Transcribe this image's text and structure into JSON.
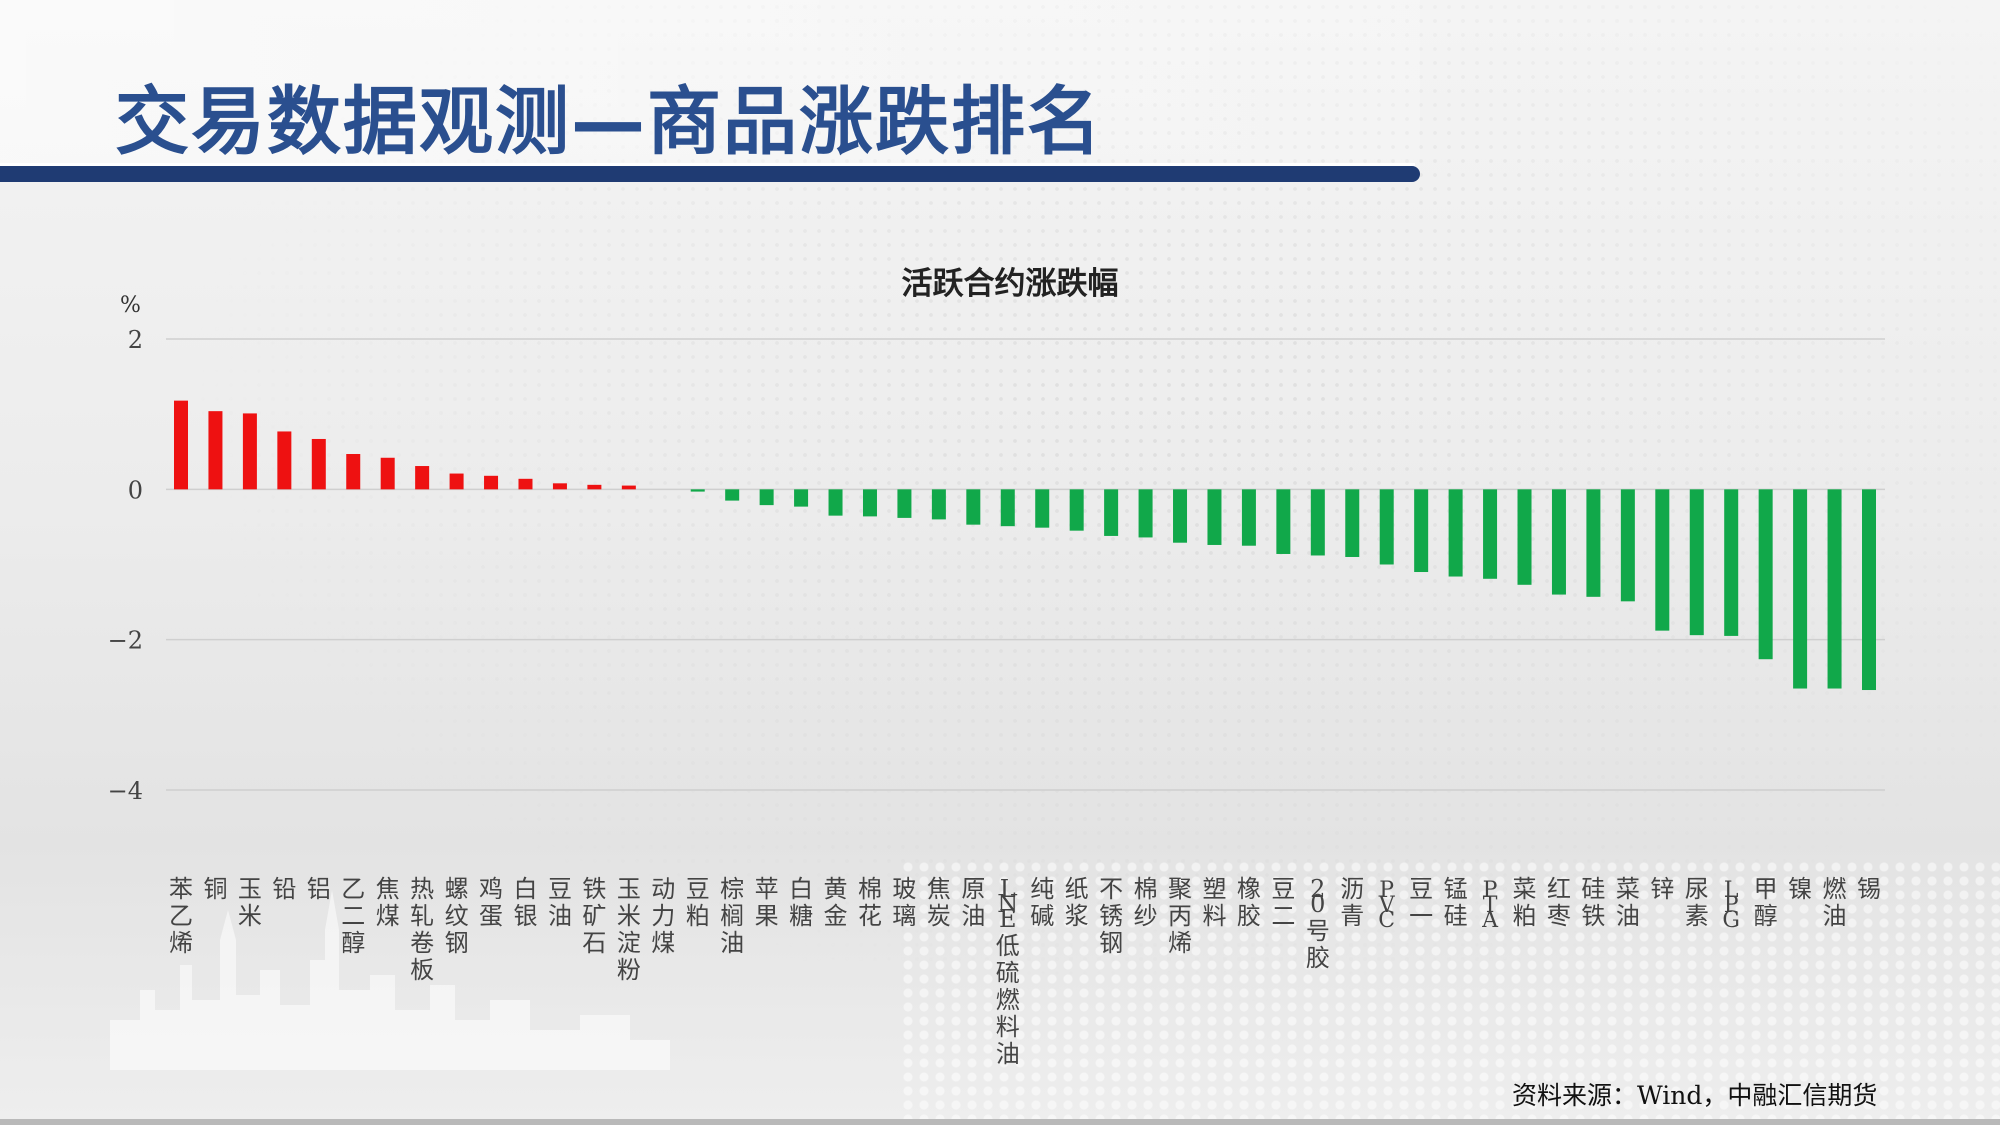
{
  "header": {
    "title": "交易数据观测—商品涨跌排名"
  },
  "footer": {
    "source": "资料来源：Wind，中融汇信期货"
  },
  "colors": {
    "up": "#ee1111",
    "down": "#11a84a",
    "title": "#2a4f8f",
    "title_bar": "#1f3b73",
    "grid": "#cfcfcf"
  },
  "chart_data": {
    "type": "bar",
    "title": "活跃合约涨跌幅",
    "ylabel": "%",
    "xlabel": "",
    "ylim": [
      -4,
      2
    ],
    "yticks": [
      2,
      0,
      -2,
      -4
    ],
    "ytick_labels": [
      "2",
      "0",
      "−2",
      "−4"
    ],
    "grid": true,
    "legend": "none",
    "categories": [
      "苯乙烯",
      "铜",
      "玉米",
      "铅",
      "铝",
      "乙二醇",
      "焦煤",
      "热轧卷板",
      "螺纹钢",
      "鸡蛋",
      "白银",
      "豆油",
      "铁矿石",
      "玉米淀粉",
      "动力煤",
      "豆粕",
      "棕榈油",
      "苹果",
      "白糖",
      "黄金",
      "棉花",
      "玻璃",
      "焦炭",
      "原油",
      "LNE低硫燃料油",
      "纯碱",
      "纸浆",
      "不锈钢",
      "棉纱",
      "聚丙烯",
      "塑料",
      "橡胶",
      "豆二",
      "20号胶",
      "沥青",
      "PVC",
      "豆一",
      "锰硅",
      "PTA",
      "菜粕",
      "红枣",
      "硅铁",
      "菜油",
      "锌",
      "尿素",
      "LPG",
      "甲醇",
      "镍",
      "燃油",
      "锡"
    ],
    "values": [
      1.18,
      1.04,
      1.01,
      0.77,
      0.67,
      0.47,
      0.42,
      0.31,
      0.21,
      0.18,
      0.14,
      0.08,
      0.06,
      0.05,
      0.0,
      -0.03,
      -0.15,
      -0.21,
      -0.23,
      -0.35,
      -0.36,
      -0.38,
      -0.4,
      -0.47,
      -0.49,
      -0.51,
      -0.55,
      -0.62,
      -0.64,
      -0.71,
      -0.74,
      -0.75,
      -0.86,
      -0.88,
      -0.9,
      -1.0,
      -1.1,
      -1.16,
      -1.19,
      -1.27,
      -1.4,
      -1.43,
      -1.49,
      -1.88,
      -1.94,
      -1.95,
      -2.26,
      -2.65,
      -2.65,
      -2.67
    ]
  }
}
